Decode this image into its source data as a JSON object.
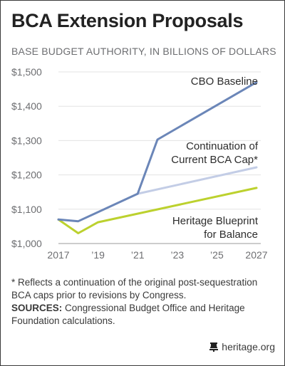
{
  "title": "BCA Extension Proposals",
  "subtitle": "BASE BUDGET AUTHORITY, IN BILLIONS OF DOLLARS",
  "chart_data": {
    "type": "line",
    "x_ticks": [
      "2017",
      "’19",
      "’21",
      "’23",
      "’25",
      "2027"
    ],
    "y_ticks": [
      "$1,000",
      "$1,100",
      "$1,200",
      "$1,300",
      "$1,400",
      "$1,500"
    ],
    "xlim": [
      2017,
      2027
    ],
    "ylim": [
      1000,
      1500
    ],
    "grid": true,
    "series": [
      {
        "name": "CBO Baseline",
        "color": "#6b86b8",
        "x": [
          2017,
          2018,
          2021,
          2022,
          2027
        ],
        "y": [
          1070,
          1065,
          1145,
          1303,
          1470
        ]
      },
      {
        "name": "Continuation of Current BCA Cap*",
        "color": "#c3cde6",
        "x": [
          2021,
          2027
        ],
        "y": [
          1145,
          1222
        ]
      },
      {
        "name": "Heritage Blueprint for Balance",
        "color": "#bcd12e",
        "x": [
          2017,
          2018,
          2019,
          2027
        ],
        "y": [
          1070,
          1030,
          1062,
          1162
        ]
      }
    ],
    "labels": [
      {
        "series": 0,
        "lines": [
          "CBO Baseline"
        ]
      },
      {
        "series": 1,
        "lines": [
          "Continuation of",
          "Current BCA Cap*"
        ]
      },
      {
        "series": 2,
        "lines": [
          "Heritage Blueprint",
          "for Balance"
        ]
      }
    ]
  },
  "footnote": "* Reflects a continuation of the original post-sequestration BCA caps prior to revisions by Congress.",
  "sources_label": "SOURCES:",
  "sources_text": " Congressional Budget Office and Heritage Foundation calculations.",
  "brand": "heritage.org",
  "brand_icon": "bell-icon"
}
